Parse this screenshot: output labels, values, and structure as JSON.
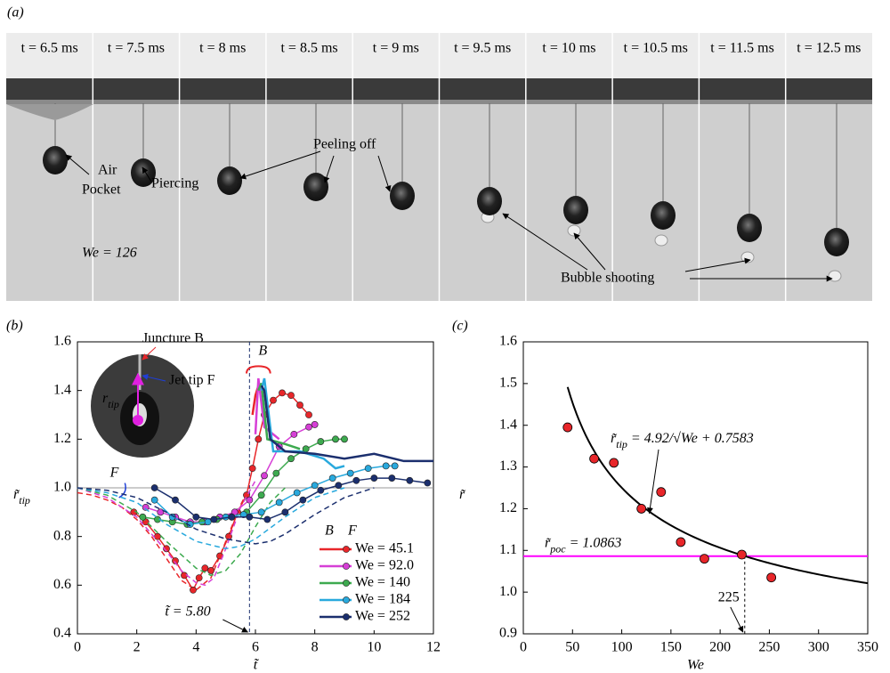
{
  "figure_a": {
    "label": "(a)",
    "frames": [
      "t = 6.5 ms",
      "t = 7.5 ms",
      "t = 8 ms",
      "t = 8.5 ms",
      "t = 9 ms",
      "t = 9.5 ms",
      "t = 10 ms",
      "t = 10.5 ms",
      "t = 11.5 ms",
      "t = 12.5 ms"
    ],
    "annotations": {
      "air": "Air",
      "pocket": "Pocket",
      "piercing": "Piercing",
      "peeling": "Peeling off",
      "shooting": "Bubble shooting",
      "we": "We = 126"
    }
  },
  "chart_data": [
    {
      "type": "line",
      "panel_label": "(b)",
      "x_label": "t̃",
      "y_label": [
        "r̃",
        "tip"
      ],
      "xlim": [
        0,
        12
      ],
      "xticks": [
        0,
        2,
        4,
        6,
        8,
        10,
        12
      ],
      "ylim": [
        0.4,
        1.6
      ],
      "yticks": [
        0.4,
        0.6,
        0.8,
        {
          "value": 1,
          "label": "1.0"
        },
        1.2,
        1.4,
        1.6
      ],
      "ref_y": 1,
      "vline": {
        "value": 5.8,
        "label": "t̃ = 5.80"
      },
      "annotations": {
        "juncture": "Juncture B",
        "jet_tip": "Jet tip F",
        "r": [
          "r",
          "tip"
        ],
        "B": "B",
        "F": "F"
      },
      "legend": "lower right",
      "legend_header": [
        "B",
        "F"
      ],
      "series": [
        {
          "name": "We = 45.1",
          "color": "#e8262a",
          "x": [
            1.9,
            2.3,
            2.7,
            3.0,
            3.3,
            3.6,
            3.9,
            4.1,
            4.3,
            4.5,
            4.8,
            5.1,
            5.4,
            5.7,
            5.9,
            6.1,
            6.3,
            6.6,
            6.9,
            7.2,
            7.5,
            7.8
          ],
          "values": [
            0.9,
            0.86,
            0.8,
            0.75,
            0.7,
            0.64,
            0.58,
            0.63,
            0.67,
            0.66,
            0.72,
            0.8,
            0.9,
            0.97,
            1.08,
            1.2,
            1.3,
            1.36,
            1.39,
            1.38,
            1.34,
            1.3
          ],
          "sim_x": [
            0,
            0.5,
            1,
            1.5,
            2,
            2.5,
            3,
            3.5,
            4,
            4.5,
            5,
            5.5,
            5.8
          ],
          "sim_values": [
            0.98,
            0.97,
            0.95,
            0.92,
            0.87,
            0.8,
            0.71,
            0.62,
            0.58,
            0.63,
            0.78,
            0.93,
            1.0
          ],
          "jet_x": [
            5.9,
            6.0,
            6.1
          ],
          "jet_values": [
            1.3,
            1.38,
            1.42
          ]
        },
        {
          "name": "We = 92.0",
          "color": "#d63fd6",
          "x": [
            2.3,
            2.8,
            3.3,
            3.8,
            4.3,
            4.8,
            5.3,
            5.8,
            6.3,
            6.8,
            7.3,
            7.8,
            8.0
          ],
          "values": [
            0.92,
            0.9,
            0.88,
            0.86,
            0.86,
            0.88,
            0.9,
            0.95,
            1.05,
            1.17,
            1.22,
            1.25,
            1.26
          ],
          "sim_x": [
            0,
            1,
            2,
            3,
            3.5,
            4,
            4.3,
            4.6,
            5,
            5.5,
            6
          ],
          "sim_values": [
            1.0,
            0.96,
            0.88,
            0.74,
            0.66,
            0.61,
            0.6,
            0.63,
            0.75,
            0.92,
            1.03
          ],
          "jet_x": [
            6.0,
            6.1,
            6.3,
            6.8
          ],
          "jet_values": [
            1.22,
            1.45,
            1.25,
            1.2
          ]
        },
        {
          "name": "We = 140",
          "color": "#3daa4f",
          "x": [
            2.2,
            2.7,
            3.2,
            3.7,
            4.2,
            4.7,
            5.2,
            5.7,
            6.2,
            6.7,
            7.2,
            7.7,
            8.2,
            8.7,
            9.0
          ],
          "values": [
            0.88,
            0.87,
            0.86,
            0.85,
            0.86,
            0.87,
            0.88,
            0.9,
            0.97,
            1.06,
            1.12,
            1.16,
            1.19,
            1.2,
            1.2
          ],
          "sim_x": [
            0,
            1,
            2,
            3,
            4,
            4.5,
            5,
            5.5,
            6,
            6.5,
            7
          ],
          "sim_values": [
            1.0,
            0.97,
            0.9,
            0.78,
            0.67,
            0.64,
            0.66,
            0.73,
            0.84,
            0.94,
            1.0
          ],
          "jet_x": [
            6.1,
            6.2,
            6.4,
            7,
            7.5
          ],
          "jet_values": [
            1.4,
            1.43,
            1.2,
            1.18,
            1.16
          ]
        },
        {
          "name": "We = 184",
          "color": "#29a9dd",
          "x": [
            2.6,
            3.2,
            3.8,
            4.4,
            5.0,
            5.6,
            6.2,
            6.8,
            7.4,
            8.0,
            8.6,
            9.2,
            9.8,
            10.4,
            10.7
          ],
          "values": [
            0.95,
            0.88,
            0.85,
            0.86,
            0.88,
            0.89,
            0.9,
            0.94,
            0.98,
            1.01,
            1.04,
            1.06,
            1.08,
            1.09,
            1.09
          ],
          "sim_x": [
            0,
            1,
            2,
            3,
            4,
            5,
            5.5,
            6,
            7,
            8,
            9
          ],
          "sim_values": [
            1.0,
            0.98,
            0.94,
            0.85,
            0.78,
            0.75,
            0.76,
            0.79,
            0.88,
            0.96,
            1.0
          ],
          "jet_x": [
            6.2,
            6.3,
            6.6,
            7.5,
            8.3,
            8.7,
            9
          ],
          "jet_values": [
            1.4,
            1.45,
            1.15,
            1.15,
            1.12,
            1.08,
            1.09
          ]
        },
        {
          "name": "We = 252",
          "color": "#1b2f6e",
          "x": [
            2.6,
            3.3,
            4.0,
            4.6,
            5.2,
            5.8,
            6.4,
            7.0,
            7.6,
            8.2,
            8.8,
            9.4,
            10.0,
            10.6,
            11.2,
            11.8
          ],
          "values": [
            1.0,
            0.95,
            0.88,
            0.87,
            0.88,
            0.88,
            0.87,
            0.9,
            0.95,
            0.99,
            1.01,
            1.03,
            1.04,
            1.04,
            1.03,
            1.02
          ],
          "sim_x": [
            0,
            1,
            2,
            3,
            4,
            5,
            6,
            6.5,
            7,
            8,
            9,
            10
          ],
          "sim_values": [
            1.0,
            0.99,
            0.96,
            0.9,
            0.83,
            0.79,
            0.77,
            0.78,
            0.81,
            0.89,
            0.96,
            1.0
          ],
          "jet_x": [
            6.2,
            6.3,
            6.5,
            7,
            8,
            9,
            10,
            11,
            12
          ],
          "jet_values": [
            1.42,
            1.4,
            1.2,
            1.15,
            1.14,
            1.12,
            1.14,
            1.11,
            1.11
          ]
        }
      ]
    },
    {
      "type": "scatter",
      "panel_label": "(c)",
      "x_label": "We",
      "y_label": [
        "r̃"
      ],
      "xlim": [
        0,
        350
      ],
      "xticks": [
        0,
        50,
        100,
        150,
        200,
        250,
        300,
        350
      ],
      "ylim": [
        0.9,
        1.6
      ],
      "yticks": [
        0.9,
        {
          "value": 1,
          "label": "1.0"
        },
        1.1,
        1.2,
        1.3,
        1.4,
        1.5,
        1.6
      ],
      "color": "#e8262a",
      "x": [
        45,
        72,
        92,
        120,
        140,
        160,
        184,
        222,
        252
      ],
      "values": [
        1.395,
        1.32,
        1.31,
        1.2,
        1.24,
        1.12,
        1.08,
        1.09,
        1.035
      ],
      "fit": {
        "label": [
          "r̃",
          "tip",
          " = 4.92/√We + 0.7583"
        ],
        "a": 4.92,
        "b": 0.7583,
        "x_from": 45
      },
      "hline": {
        "value": 1.0863,
        "label": [
          "r̃",
          "poc",
          " = 1.0863"
        ],
        "color": "#ff00ff"
      },
      "vline": {
        "value": 225
      }
    }
  ]
}
